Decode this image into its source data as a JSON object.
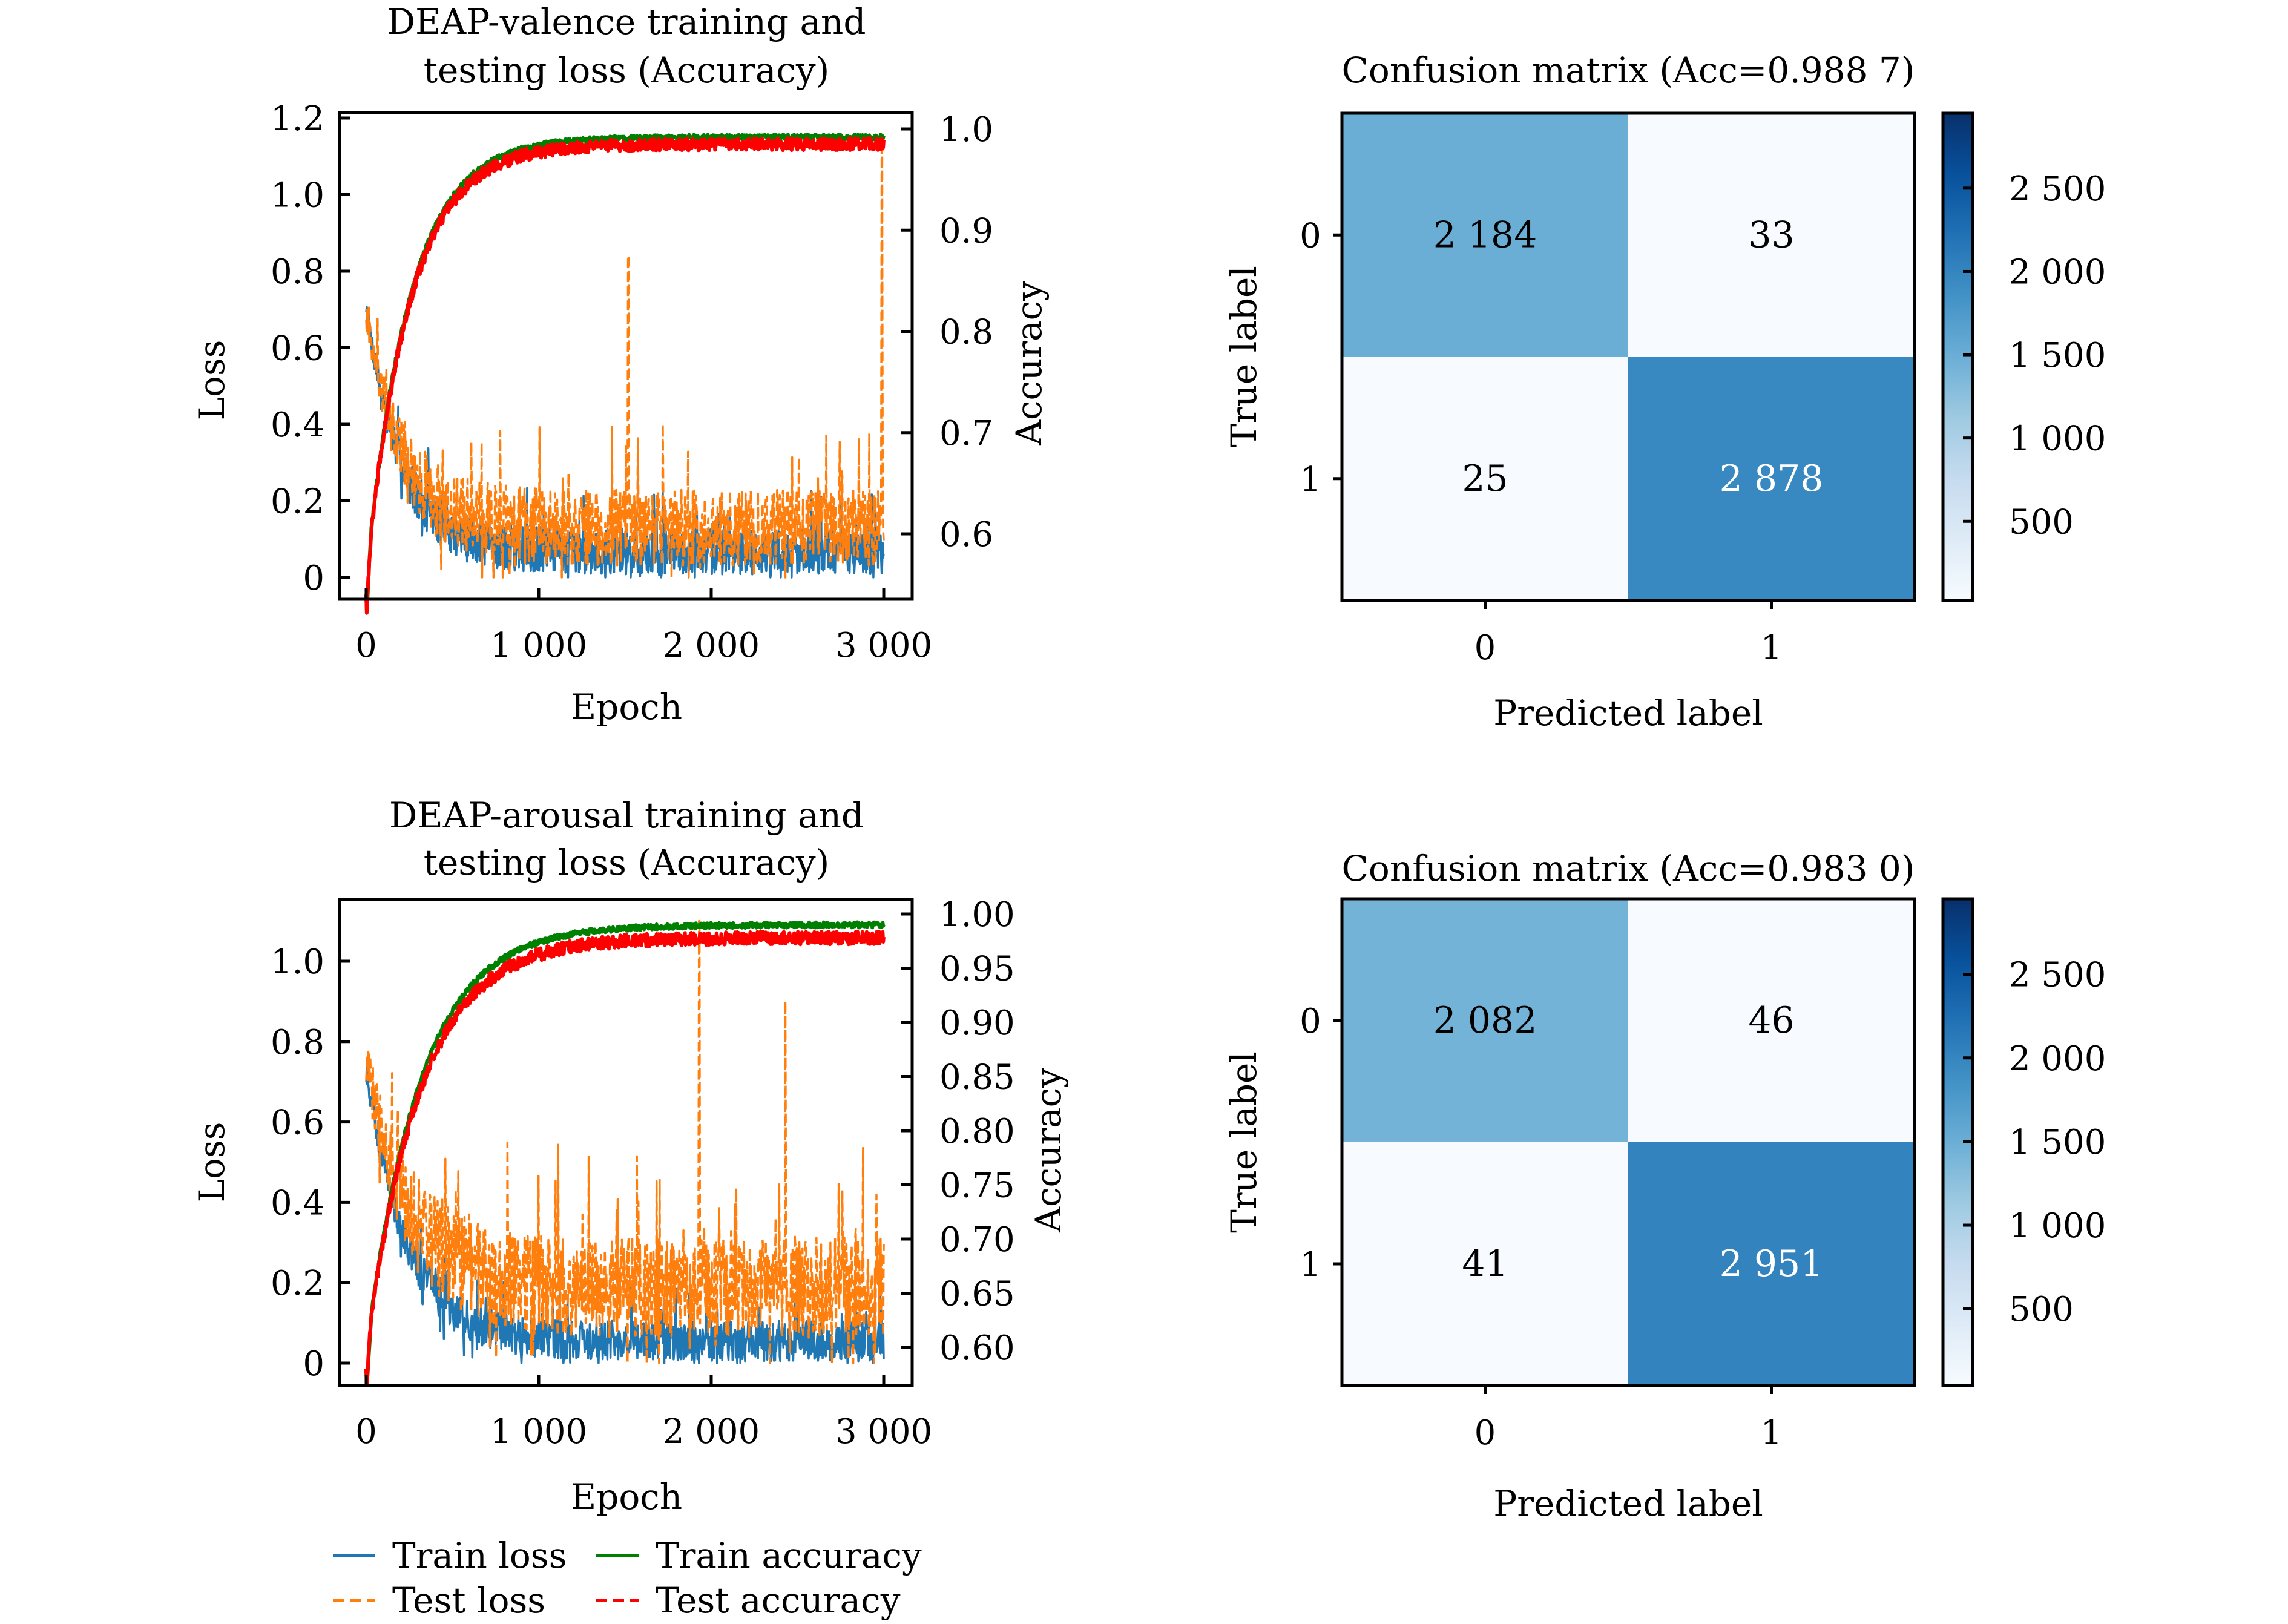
{
  "figure": {
    "legend": {
      "placement": "bottom-left, below lower-left chart",
      "items": [
        {
          "label": "Train loss",
          "color": "#1f77b4",
          "style": "solid"
        },
        {
          "label": "Train accuracy",
          "color": "#008000",
          "style": "solid"
        },
        {
          "label": "Test loss",
          "color": "#ff7f0e",
          "style": "dashed"
        },
        {
          "label": "Test accuracy",
          "color": "#ff0000",
          "style": "dashed"
        }
      ]
    }
  },
  "chart_data": [
    {
      "id": "valence_curves",
      "type": "line",
      "title_lines": [
        "DEAP-valence training and",
        "testing loss (Accuracy)"
      ],
      "xlabel": "Epoch",
      "ylabel_left": "Loss",
      "ylabel_right": "Accuracy",
      "xlim": [
        -100,
        3100
      ],
      "x_ticks": [
        0,
        1000,
        2000,
        3000
      ],
      "x_tick_labels": [
        "0",
        "1 000",
        "2 000",
        "3 000"
      ],
      "ylim_left": [
        -0.05,
        1.25
      ],
      "y_ticks_left": [
        0,
        0.2,
        0.4,
        0.6,
        0.8,
        1.0,
        1.2
      ],
      "y_tick_labels_left": [
        "0",
        "0.2",
        "0.4",
        "0.6",
        "0.8",
        "1.0",
        "1.2"
      ],
      "ylim_right": [
        0.54,
        1.025
      ],
      "y_ticks_right": [
        0.6,
        0.7,
        0.8,
        0.9,
        1.0
      ],
      "y_tick_labels_right": [
        "0.6",
        "0.7",
        "0.8",
        "0.9",
        "1.0"
      ],
      "grid": false,
      "epochs": 3000,
      "series": [
        {
          "name": "Train loss",
          "axis": "left",
          "color": "#1f77b4",
          "style": "solid",
          "summary": {
            "start": 0.7,
            "end_mean": 0.05,
            "min": 0.0,
            "max": 0.79,
            "decay_epochs": 600,
            "noise": 0.12
          }
        },
        {
          "name": "Test loss",
          "axis": "left",
          "color": "#ff7f0e",
          "style": "dashed",
          "summary": {
            "start": 0.68,
            "end_mean": 0.1,
            "min": 0.0,
            "max": 1.12,
            "decay_epochs": 600,
            "noise": 0.2,
            "spikes": [
              {
                "epoch": 1520,
                "value": 0.84
              },
              {
                "epoch": 2990,
                "value": 1.12
              }
            ]
          }
        },
        {
          "name": "Train accuracy",
          "axis": "right",
          "color": "#008000",
          "style": "solid",
          "summary": {
            "start": 0.555,
            "end": 0.992,
            "plateau_epoch": 800
          }
        },
        {
          "name": "Test accuracy",
          "axis": "right",
          "color": "#ff0000",
          "style": "dashed",
          "summary": {
            "start": 0.555,
            "end": 0.985,
            "plateau_epoch": 800
          }
        }
      ]
    },
    {
      "id": "valence_confusion",
      "type": "heatmap",
      "title": "Confusion matrix (Acc=0.988 7)",
      "xlabel": "Predicted label",
      "ylabel": "True label",
      "x_tick_labels": [
        "0",
        "1"
      ],
      "y_tick_labels": [
        "0",
        "1"
      ],
      "values": [
        [
          2184,
          33
        ],
        [
          25,
          2878
        ]
      ],
      "value_labels": [
        [
          "2 184",
          "33"
        ],
        [
          "25",
          "2 878"
        ]
      ],
      "colormap": "Blues",
      "colorbar": {
        "vmin": 25,
        "vmax": 2950,
        "ticks": [
          500,
          1000,
          1500,
          2000,
          2500
        ],
        "tick_labels": [
          "500",
          "1 000",
          "1 500",
          "2 000",
          "2 500"
        ]
      }
    },
    {
      "id": "arousal_curves",
      "type": "line",
      "title_lines": [
        "DEAP-arousal training and",
        "testing loss (Accuracy)"
      ],
      "xlabel": "Epoch",
      "ylabel_left": "Loss",
      "ylabel_right": "Accuracy",
      "xlim": [
        -100,
        3100
      ],
      "x_ticks": [
        0,
        1000,
        2000,
        3000
      ],
      "x_tick_labels": [
        "0",
        "1 000",
        "2 000",
        "3 000"
      ],
      "ylim_left": [
        -0.055,
        1.14
      ],
      "y_ticks_left": [
        0,
        0.2,
        0.4,
        0.6,
        0.8,
        1.0
      ],
      "y_tick_labels_left": [
        "0",
        "0.2",
        "0.4",
        "0.6",
        "0.8",
        "1.0"
      ],
      "ylim_right": [
        0.58,
        1.013
      ],
      "y_ticks_right": [
        0.6,
        0.65,
        0.7,
        0.75,
        0.8,
        0.85,
        0.9,
        0.95,
        1.0
      ],
      "y_tick_labels_right": [
        "0.60",
        "0.65",
        "0.70",
        "0.75",
        "0.80",
        "0.85",
        "0.90",
        "0.95",
        "1.00"
      ],
      "grid": false,
      "epochs": 3000,
      "series": [
        {
          "name": "Train loss",
          "axis": "left",
          "color": "#1f77b4",
          "style": "solid",
          "summary": {
            "start": 0.72,
            "end_mean": 0.04,
            "min": 0.0,
            "max": 0.76,
            "decay_epochs": 700,
            "noise": 0.1
          }
        },
        {
          "name": "Test loss",
          "axis": "left",
          "color": "#ff7f0e",
          "style": "dashed",
          "summary": {
            "start": 0.74,
            "end_mean": 0.15,
            "min": 0.0,
            "max": 1.1,
            "decay_epochs": 700,
            "noise": 0.25,
            "spikes": [
              {
                "epoch": 1930,
                "value": 1.1
              },
              {
                "epoch": 2430,
                "value": 0.9
              }
            ]
          }
        },
        {
          "name": "Train accuracy",
          "axis": "right",
          "color": "#008000",
          "style": "solid",
          "summary": {
            "start": 0.595,
            "end": 0.99,
            "plateau_epoch": 1000
          }
        },
        {
          "name": "Test accuracy",
          "axis": "right",
          "color": "#ff0000",
          "style": "dashed",
          "summary": {
            "start": 0.595,
            "end": 0.978,
            "plateau_epoch": 1000
          }
        }
      ]
    },
    {
      "id": "arousal_confusion",
      "type": "heatmap",
      "title": "Confusion matrix (Acc=0.983 0)",
      "xlabel": "Predicted label",
      "ylabel": "True label",
      "x_tick_labels": [
        "0",
        "1"
      ],
      "y_tick_labels": [
        "0",
        "1"
      ],
      "values": [
        [
          2082,
          46
        ],
        [
          41,
          2951
        ]
      ],
      "value_labels": [
        [
          "2 082",
          "46"
        ],
        [
          "41",
          "2 951"
        ]
      ],
      "colormap": "Blues",
      "colorbar": {
        "vmin": 41,
        "vmax": 2951,
        "ticks": [
          500,
          1000,
          1500,
          2000,
          2500
        ],
        "tick_labels": [
          "500",
          "1 000",
          "1 500",
          "2 000",
          "2 500"
        ]
      }
    }
  ]
}
